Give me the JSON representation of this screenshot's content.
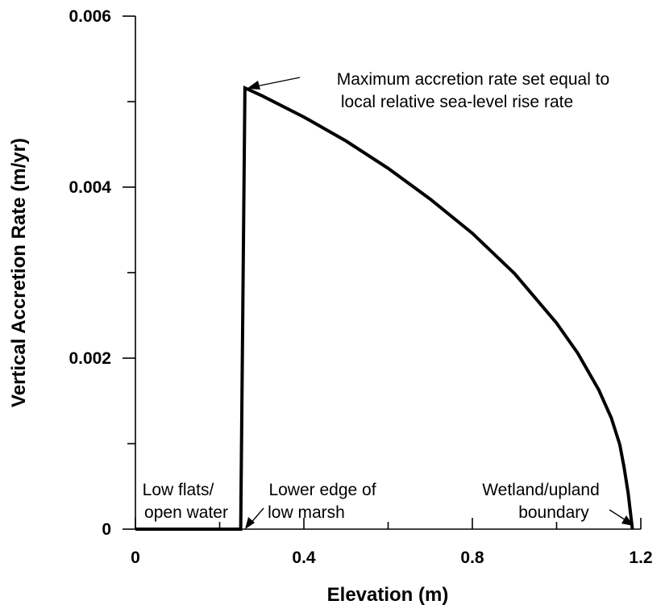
{
  "chart_data": {
    "type": "line",
    "xlabel": "Elevation (m)",
    "ylabel": "Vertical Accretion Rate (m/yr)",
    "xlim": [
      0,
      1.2
    ],
    "ylim": [
      0,
      0.006
    ],
    "x_tick_labels": [
      "0",
      "0.4",
      "0.8",
      "1.2"
    ],
    "y_tick_labels": [
      "0",
      "0.002",
      "0.004",
      "0.006"
    ],
    "grid": false,
    "series": [
      {
        "x": [
          0,
          0.25,
          0.26,
          0.3,
          0.4,
          0.5,
          0.6,
          0.7,
          0.8,
          0.9,
          1.0,
          1.05,
          1.1,
          1.13,
          1.15,
          1.16,
          1.17,
          1.18
        ],
        "y": [
          0,
          0,
          0.00516,
          0.00507,
          0.00482,
          0.00454,
          0.00422,
          0.00386,
          0.00346,
          0.00299,
          0.00241,
          0.00206,
          0.00163,
          0.0013,
          0.00099,
          0.00073,
          0.00042,
          0
        ]
      }
    ],
    "annotations": [
      {
        "lines": [
          "Maximum accretion rate set equal to",
          "local relative sea-level rise rate"
        ]
      },
      {
        "lines": [
          "Low flats/",
          "open water"
        ]
      },
      {
        "lines": [
          "Lower edge of",
          "low marsh"
        ]
      },
      {
        "lines": [
          "Wetland/upland",
          "boundary"
        ]
      }
    ]
  }
}
